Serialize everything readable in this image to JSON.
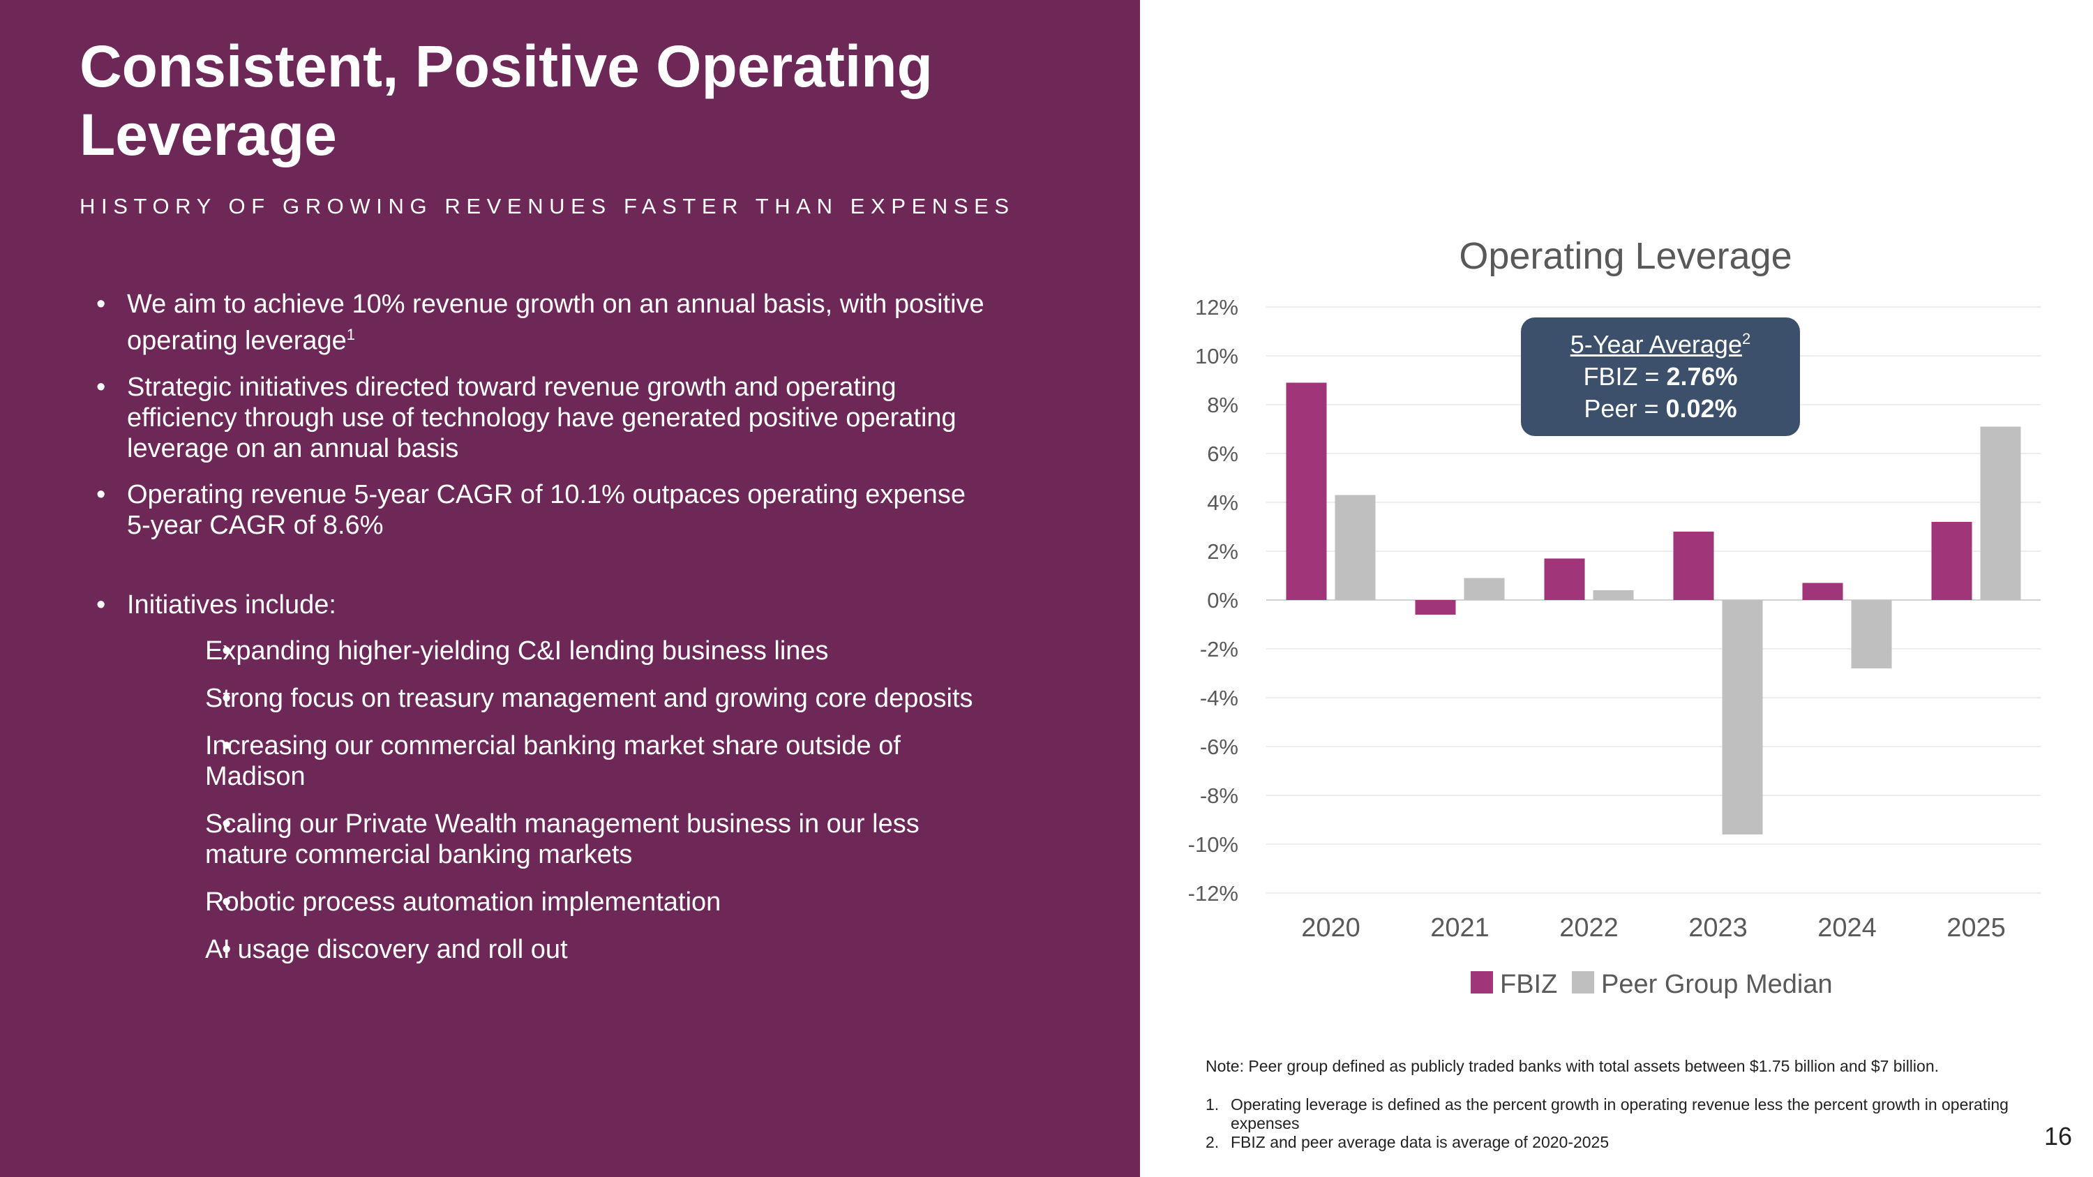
{
  "slide": {
    "title": "Consistent, Positive Operating Leverage",
    "subtitle": "HISTORY OF GROWING REVENUES FASTER THAN EXPENSES",
    "page_number": "16"
  },
  "bullets": {
    "b1": "We aim to achieve 10% revenue growth on an annual basis, with positive operating leverage",
    "b1_sup": "1",
    "b2": "Strategic initiatives directed toward revenue growth and operating efficiency through use of technology have generated positive operating leverage on an annual basis",
    "b3": "Operating revenue 5-year CAGR of 10.1% outpaces operating expense 5-year CAGR of 8.6%",
    "b4": "Initiatives include:",
    "sub": [
      "Expanding higher-yielding C&I lending business lines",
      "Strong focus on treasury management and growing core deposits",
      "Increasing our commercial banking market share outside of Madison",
      "Scaling our Private Wealth management business in our less mature commercial banking markets",
      "Robotic process automation implementation",
      "AI usage discovery and roll out"
    ]
  },
  "avg_box": {
    "heading": "5-Year Average",
    "heading_sup": "2",
    "fbiz_label": "FBIZ = ",
    "fbiz_value": "2.76%",
    "peer_label": "Peer = ",
    "peer_value": "0.02%"
  },
  "footnotes": {
    "note": "Note: Peer group defined as publicly traded banks with total assets between $1.75 billion and $7 billion.",
    "items": [
      {
        "num": "1.",
        "text": "Operating leverage is defined as the percent growth in operating revenue less the percent growth in operating expenses"
      },
      {
        "num": "2.",
        "text": "FBIZ and peer average data is average of 2020-2025"
      }
    ]
  },
  "colors": {
    "fbiz": "#a0357a",
    "peer": "#bfbfbf",
    "panel": "#6e2858",
    "box": "#3c4f6b"
  },
  "chart_data": {
    "type": "bar",
    "title": "Operating Leverage",
    "categories": [
      "2020",
      "2021",
      "2022",
      "2023",
      "2024",
      "2025"
    ],
    "series": [
      {
        "name": "FBIZ",
        "values": [
          8.9,
          -0.6,
          1.7,
          2.8,
          0.7,
          3.2
        ]
      },
      {
        "name": "Peer Group Median",
        "values": [
          4.3,
          0.9,
          0.4,
          -9.6,
          -2.8,
          7.1
        ]
      }
    ],
    "ylim": [
      -12,
      12
    ],
    "yticks": [
      12,
      10,
      8,
      6,
      4,
      2,
      0,
      -2,
      -4,
      -6,
      -8,
      -10,
      -12
    ],
    "ytick_labels": [
      "12%",
      "10%",
      "8%",
      "6%",
      "4%",
      "2%",
      "0%",
      "-2%",
      "-4%",
      "-6%",
      "-8%",
      "-10%",
      "-12%"
    ],
    "grid": true,
    "legend": "bottom"
  }
}
